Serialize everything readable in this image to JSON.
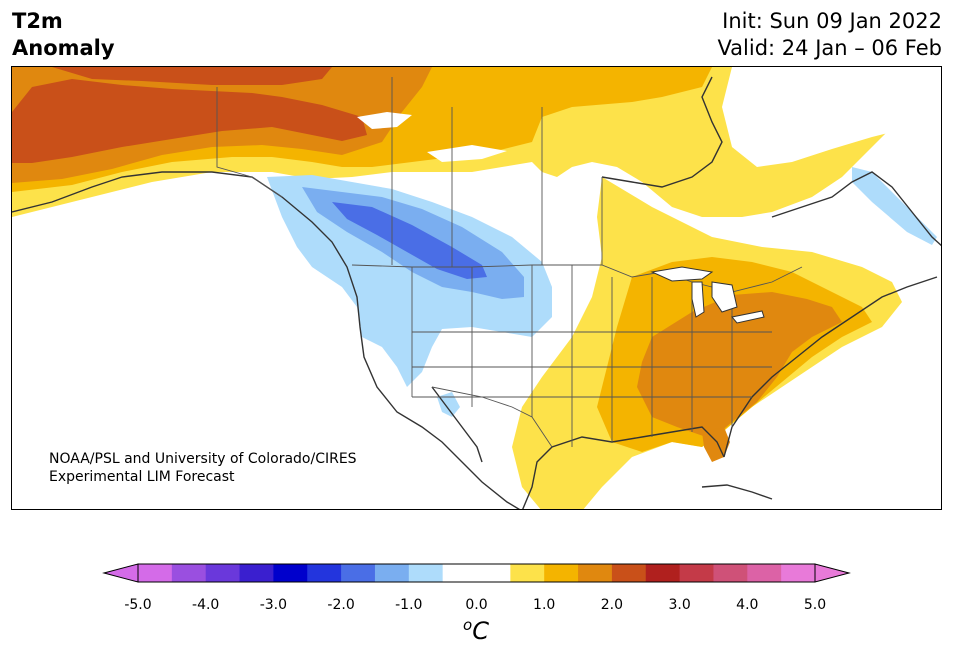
{
  "header": {
    "variable_line1": "T2m",
    "variable_line2": "Anomaly",
    "init_line": "Init: Sun 09 Jan 2022",
    "valid_line": "Valid: 24 Jan – 06 Feb"
  },
  "credit": {
    "line1": "NOAA/PSL and University of Colorado/CIRES",
    "line2": "Experimental LIM Forecast"
  },
  "colorbar": {
    "min_color": "#d46be8",
    "max_color": "#e87ad9",
    "colors": [
      "#d46be8",
      "#9a4fe0",
      "#6a38db",
      "#3a1fcf",
      "#0000cc",
      "#2335dd",
      "#4a6ee6",
      "#7aaef0",
      "#aedcfb",
      "#ffffff",
      "#ffffff",
      "#fde24a",
      "#f4b400",
      "#e0880f",
      "#c95019",
      "#b0201e",
      "#c43a48",
      "#cf5178",
      "#dc62a6",
      "#e87ad9"
    ],
    "tick_labels": [
      "-5.0",
      "-4.0",
      "-3.0",
      "-2.0",
      "-1.0",
      "0.0",
      "1.0",
      "2.0",
      "3.0",
      "4.0",
      "5.0"
    ],
    "unit_base": "C",
    "unit_sup": "o"
  }
}
